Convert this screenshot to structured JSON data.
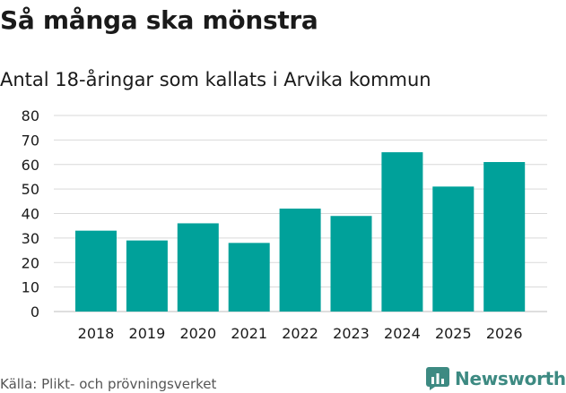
{
  "header": {
    "title": "Så många ska mönstra",
    "subtitle": "Antal 18-åringar som kallats i Arvika kommun"
  },
  "footer": {
    "source": "Källa: Plikt- och prövningsverket",
    "brand": "Newsworthy"
  },
  "colors": {
    "bar": "#00a19a",
    "grid": "#d9d9d9",
    "brand": "#3d8a82"
  },
  "chart_data": {
    "type": "bar",
    "title": "Så många ska mönstra",
    "subtitle": "Antal 18-åringar som kallats i Arvika kommun",
    "xlabel": "",
    "ylabel": "",
    "categories": [
      "2018",
      "2019",
      "2020",
      "2021",
      "2022",
      "2023",
      "2024",
      "2025",
      "2026"
    ],
    "values": [
      33,
      29,
      36,
      28,
      42,
      39,
      65,
      51,
      61
    ],
    "ylim": [
      0,
      80
    ],
    "yticks": [
      0,
      10,
      20,
      30,
      40,
      50,
      60,
      70,
      80
    ],
    "grid": true,
    "legend": "none"
  }
}
